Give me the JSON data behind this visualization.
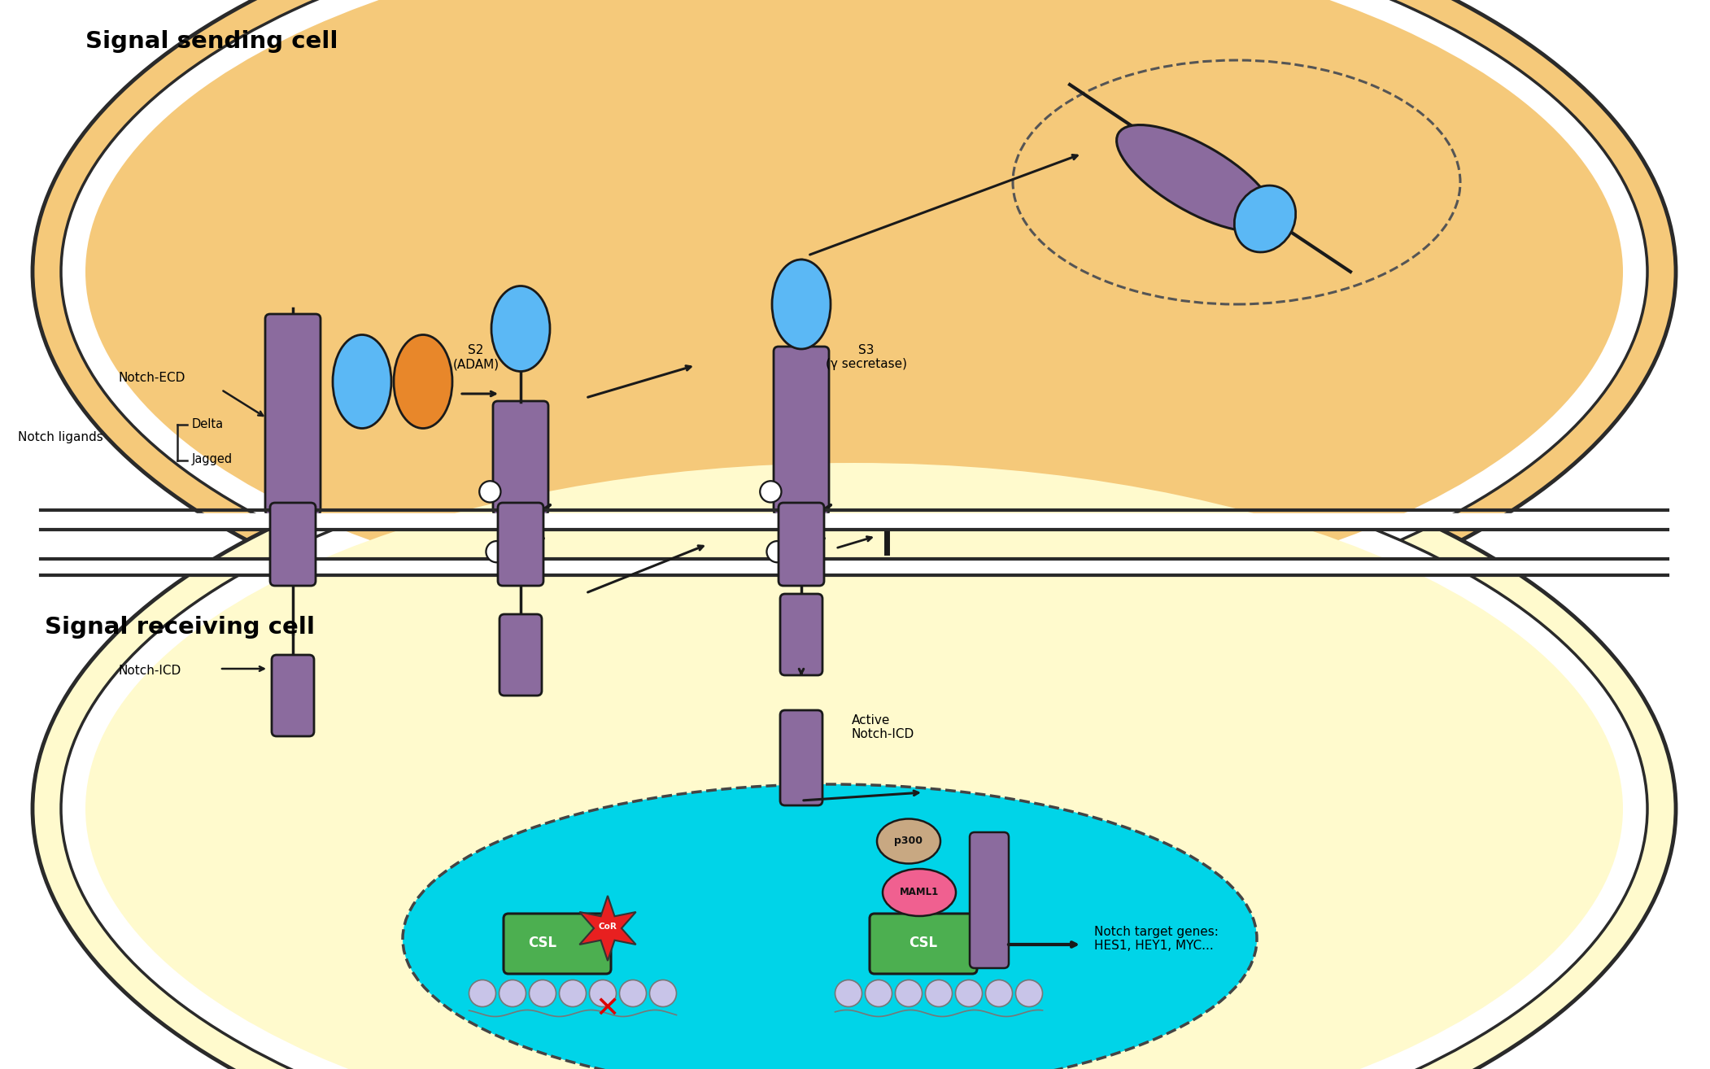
{
  "bg_color": "#ffffff",
  "sending_cell_color": "#f5c97a",
  "receiving_cell_color": "#fffacd",
  "purple_color": "#8b6b9e",
  "blue_oval_color": "#5bb8f5",
  "orange_oval_color": "#e8872a",
  "green_box_color": "#4caf50",
  "pink_oval_color": "#f06090",
  "tan_oval_color": "#c8a882",
  "red_star_color": "#e82020",
  "cyan_nucleus_color": "#00d4e8",
  "text_color": "#000000",
  "sending_cell_label": "Signal sending cell",
  "receiving_cell_label": "Signal receiving cell",
  "notch_ligands_label": "Notch ligands",
  "delta_label": "Delta",
  "jagged_label": "Jagged",
  "notch_ecd_label": "Notch-ECD",
  "notch_icd_label": "Notch-ICD",
  "s2_label": "S2\n(ADAM)",
  "s3_label": "S3\n(γ secretase)",
  "active_notch_label": "Active\nNotch-ICD",
  "p300_label": "p300",
  "maml1_label": "MAML1",
  "csl_label": "CSL",
  "cor_label": "CoR",
  "target_genes_label": "Notch target genes:\nHES1, HEY1, MYC..."
}
